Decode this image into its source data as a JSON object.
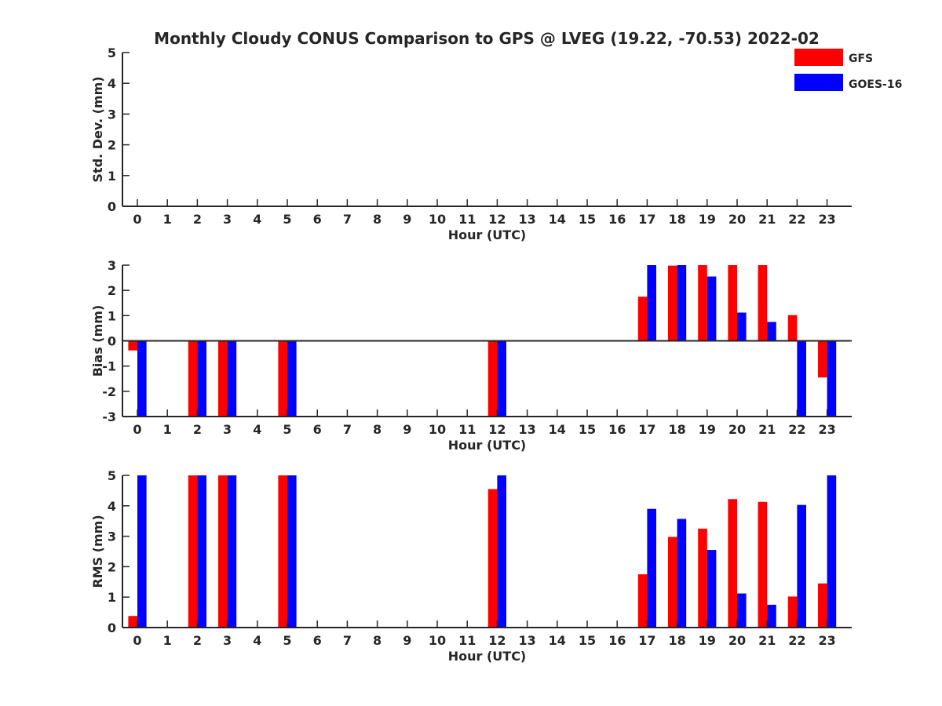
{
  "title": "Monthly Cloudy CONUS Comparison to GPS @ LVEG (19.22, -70.53) 2022-02",
  "legend": {
    "placement": "top-right",
    "entries": [
      {
        "label": "GFS",
        "color": "#ff0000"
      },
      {
        "label": "GOES-16",
        "color": "#0000ff"
      }
    ]
  },
  "colors": {
    "gfs": "#ff0000",
    "goes": "#0000ff",
    "axis": "#262626"
  },
  "chart_data": [
    {
      "type": "bar",
      "xlabel": "Hour (UTC)",
      "ylabel": "Std. Dev. (mm)",
      "ylim": [
        0,
        5
      ],
      "yticks": [
        "0",
        "1",
        "2",
        "3",
        "4",
        "5"
      ],
      "categories": [
        "0",
        "1",
        "2",
        "3",
        "4",
        "5",
        "6",
        "7",
        "8",
        "9",
        "10",
        "11",
        "12",
        "13",
        "14",
        "15",
        "16",
        "17",
        "18",
        "19",
        "20",
        "21",
        "22",
        "23"
      ],
      "series": [
        {
          "name": "GFS",
          "values": [
            null,
            null,
            null,
            null,
            null,
            null,
            null,
            null,
            null,
            null,
            null,
            null,
            null,
            null,
            null,
            null,
            null,
            null,
            null,
            null,
            null,
            null,
            null,
            null
          ]
        },
        {
          "name": "GOES-16",
          "values": [
            null,
            null,
            null,
            null,
            null,
            null,
            null,
            null,
            null,
            null,
            null,
            null,
            null,
            null,
            null,
            null,
            null,
            null,
            null,
            null,
            null,
            null,
            null,
            null
          ]
        }
      ]
    },
    {
      "type": "bar",
      "xlabel": "Hour (UTC)",
      "ylabel": "Bias (mm)",
      "ylim": [
        -3,
        3
      ],
      "yticks": [
        "-3",
        "-2",
        "-1",
        "0",
        "1",
        "2",
        "3"
      ],
      "zero_line": true,
      "categories": [
        "0",
        "1",
        "2",
        "3",
        "4",
        "5",
        "6",
        "7",
        "8",
        "9",
        "10",
        "11",
        "12",
        "13",
        "14",
        "15",
        "16",
        "17",
        "18",
        "19",
        "20",
        "21",
        "22",
        "23"
      ],
      "series": [
        {
          "name": "GFS",
          "values": [
            -0.38,
            null,
            -3,
            -3,
            null,
            -3,
            null,
            null,
            null,
            null,
            null,
            null,
            -3,
            null,
            null,
            null,
            null,
            1.75,
            2.98,
            3,
            3,
            3,
            1.02,
            -1.45
          ]
        },
        {
          "name": "GOES-16",
          "values": [
            -3,
            null,
            -3,
            -3,
            null,
            -3,
            null,
            null,
            null,
            null,
            null,
            null,
            -3,
            null,
            null,
            null,
            null,
            3,
            3,
            2.55,
            1.12,
            0.75,
            -3,
            -3
          ]
        }
      ]
    },
    {
      "type": "bar",
      "xlabel": "Hour (UTC)",
      "ylabel": "RMS (mm)",
      "ylim": [
        0,
        5
      ],
      "yticks": [
        "0",
        "1",
        "2",
        "3",
        "4",
        "5"
      ],
      "categories": [
        "0",
        "1",
        "2",
        "3",
        "4",
        "5",
        "6",
        "7",
        "8",
        "9",
        "10",
        "11",
        "12",
        "13",
        "14",
        "15",
        "16",
        "17",
        "18",
        "19",
        "20",
        "21",
        "22",
        "23"
      ],
      "series": [
        {
          "name": "GFS",
          "values": [
            0.38,
            null,
            5,
            5,
            null,
            5,
            null,
            null,
            null,
            null,
            null,
            null,
            4.55,
            null,
            null,
            null,
            null,
            1.75,
            2.98,
            3.25,
            4.22,
            4.13,
            1.02,
            1.45
          ]
        },
        {
          "name": "GOES-16",
          "values": [
            5,
            null,
            5,
            5,
            null,
            5,
            null,
            null,
            null,
            null,
            null,
            null,
            5,
            null,
            null,
            null,
            null,
            3.9,
            3.57,
            2.55,
            1.12,
            0.75,
            4.03,
            5
          ]
        }
      ]
    }
  ]
}
